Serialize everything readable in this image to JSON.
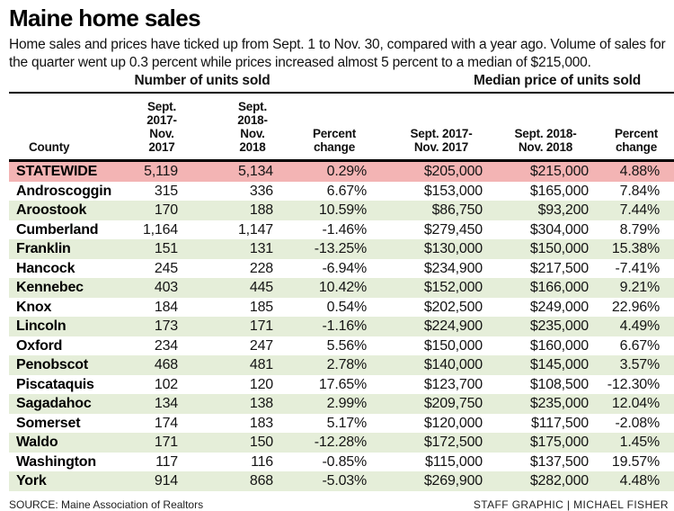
{
  "title": "Maine home sales",
  "intro": "Home sales and prices have ticked up from Sept. 1 to Nov. 30, compared with a year ago. Volume of sales for the quarter went up 0.3 percent while prices increased almost 5 percent to a median of $215,000.",
  "colors": {
    "statewide_row": "#f3b4b4",
    "alt_row_green": "#e5eed9",
    "rule_black": "#000000"
  },
  "table": {
    "group_headers": [
      "Number of units sold",
      "Median price of units sold"
    ],
    "columns": [
      "County",
      "Sept. 2017-\nNov. 2017",
      "Sept. 2018-\nNov. 2018",
      "Percent\nchange",
      "Sept. 2017-\nNov. 2017",
      "Sept. 2018-\nNov. 2018",
      "Percent\nchange"
    ],
    "rows": [
      {
        "county": "STATEWIDE",
        "u17": "5,119",
        "u18": "5,134",
        "upct": "0.29%",
        "p17": "$205,000",
        "p18": "$215,000",
        "ppct": "4.88%",
        "highlight": true
      },
      {
        "county": "Androscoggin",
        "u17": "315",
        "u18": "336",
        "upct": "6.67%",
        "p17": "$153,000",
        "p18": "$165,000",
        "ppct": "7.84%"
      },
      {
        "county": "Aroostook",
        "u17": "170",
        "u18": "188",
        "upct": "10.59%",
        "p17": "$86,750",
        "p18": "$93,200",
        "ppct": "7.44%"
      },
      {
        "county": "Cumberland",
        "u17": "1,164",
        "u18": "1,147",
        "upct": "-1.46%",
        "p17": "$279,450",
        "p18": "$304,000",
        "ppct": "8.79%"
      },
      {
        "county": "Franklin",
        "u17": "151",
        "u18": "131",
        "upct": "-13.25%",
        "p17": "$130,000",
        "p18": "$150,000",
        "ppct": "15.38%"
      },
      {
        "county": "Hancock",
        "u17": "245",
        "u18": "228",
        "upct": "-6.94%",
        "p17": "$234,900",
        "p18": "$217,500",
        "ppct": "-7.41%"
      },
      {
        "county": "Kennebec",
        "u17": "403",
        "u18": "445",
        "upct": "10.42%",
        "p17": "$152,000",
        "p18": "$166,000",
        "ppct": "9.21%"
      },
      {
        "county": "Knox",
        "u17": "184",
        "u18": "185",
        "upct": "0.54%",
        "p17": "$202,500",
        "p18": "$249,000",
        "ppct": "22.96%"
      },
      {
        "county": "Lincoln",
        "u17": "173",
        "u18": "171",
        "upct": "-1.16%",
        "p17": "$224,900",
        "p18": "$235,000",
        "ppct": "4.49%"
      },
      {
        "county": "Oxford",
        "u17": "234",
        "u18": "247",
        "upct": "5.56%",
        "p17": "$150,000",
        "p18": "$160,000",
        "ppct": "6.67%"
      },
      {
        "county": "Penobscot",
        "u17": "468",
        "u18": "481",
        "upct": "2.78%",
        "p17": "$140,000",
        "p18": "$145,000",
        "ppct": "3.57%"
      },
      {
        "county": "Piscataquis",
        "u17": "102",
        "u18": "120",
        "upct": "17.65%",
        "p17": "$123,700",
        "p18": "$108,500",
        "ppct": "-12.30%"
      },
      {
        "county": "Sagadahoc",
        "u17": "134",
        "u18": "138",
        "upct": "2.99%",
        "p17": "$209,750",
        "p18": "$235,000",
        "ppct": "12.04%"
      },
      {
        "county": "Somerset",
        "u17": "174",
        "u18": "183",
        "upct": "5.17%",
        "p17": "$120,000",
        "p18": "$117,500",
        "ppct": "-2.08%"
      },
      {
        "county": "Waldo",
        "u17": "171",
        "u18": "150",
        "upct": "-12.28%",
        "p17": "$172,500",
        "p18": "$175,000",
        "ppct": "1.45%"
      },
      {
        "county": "Washington",
        "u17": "117",
        "u18": "116",
        "upct": "-0.85%",
        "p17": "$115,000",
        "p18": "$137,500",
        "ppct": "19.57%"
      },
      {
        "county": "York",
        "u17": "914",
        "u18": "868",
        "upct": "-5.03%",
        "p17": "$269,900",
        "p18": "$282,000",
        "ppct": "4.48%"
      }
    ]
  },
  "footer": {
    "source": "SOURCE: Maine Association of Realtors",
    "credit": "STAFF GRAPHIC | MICHAEL FISHER"
  },
  "chart_data": {
    "type": "table",
    "title": "Maine home sales",
    "group_headers": [
      "Number of units sold",
      "Median price of units sold"
    ],
    "columns": [
      "County",
      "Units sold Sept. 2017-Nov. 2017",
      "Units sold Sept. 2018-Nov. 2018",
      "Units percent change",
      "Median price Sept. 2017-Nov. 2017",
      "Median price Sept. 2018-Nov. 2018",
      "Price percent change"
    ],
    "rows": [
      [
        "STATEWIDE",
        5119,
        5134,
        0.29,
        205000,
        215000,
        4.88
      ],
      [
        "Androscoggin",
        315,
        336,
        6.67,
        153000,
        165000,
        7.84
      ],
      [
        "Aroostook",
        170,
        188,
        10.59,
        86750,
        93200,
        7.44
      ],
      [
        "Cumberland",
        1164,
        1147,
        -1.46,
        279450,
        304000,
        8.79
      ],
      [
        "Franklin",
        151,
        131,
        -13.25,
        130000,
        150000,
        15.38
      ],
      [
        "Hancock",
        245,
        228,
        -6.94,
        234900,
        217500,
        -7.41
      ],
      [
        "Kennebec",
        403,
        445,
        10.42,
        152000,
        166000,
        9.21
      ],
      [
        "Knox",
        184,
        185,
        0.54,
        202500,
        249000,
        22.96
      ],
      [
        "Lincoln",
        173,
        171,
        -1.16,
        224900,
        235000,
        4.49
      ],
      [
        "Oxford",
        234,
        247,
        5.56,
        150000,
        160000,
        6.67
      ],
      [
        "Penobscot",
        468,
        481,
        2.78,
        140000,
        145000,
        3.57
      ],
      [
        "Piscataquis",
        102,
        120,
        17.65,
        123700,
        108500,
        -12.3
      ],
      [
        "Sagadahoc",
        134,
        138,
        2.99,
        209750,
        235000,
        12.04
      ],
      [
        "Somerset",
        174,
        183,
        5.17,
        120000,
        117500,
        -2.08
      ],
      [
        "Waldo",
        171,
        150,
        -12.28,
        172500,
        175000,
        1.45
      ],
      [
        "Washington",
        117,
        116,
        -0.85,
        115000,
        137500,
        19.57
      ],
      [
        "York",
        914,
        868,
        -5.03,
        269900,
        282000,
        4.48
      ]
    ]
  }
}
